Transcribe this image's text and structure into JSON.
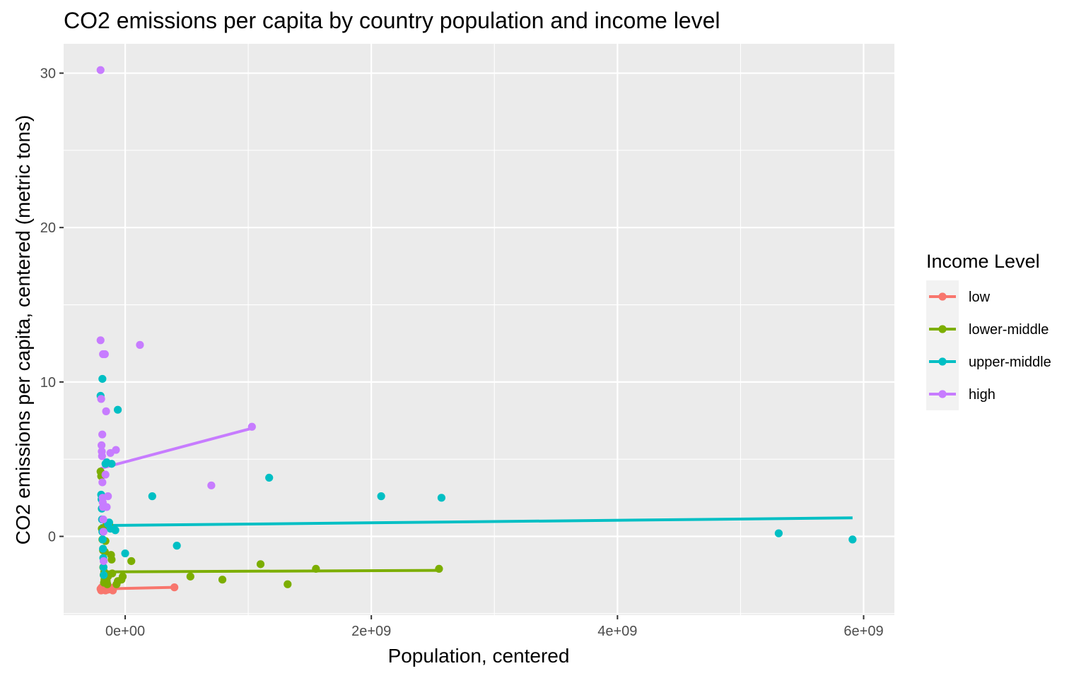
{
  "chart_data": {
    "type": "scatter",
    "title": "CO2 emissions per capita by country population and income level",
    "xlabel": "Population, centered",
    "ylabel": "CO2 emissions per capita, centered (metric tons)",
    "xlim": [
      -500000000,
      6250000000
    ],
    "ylim": [
      -5.1,
      31.9
    ],
    "x_ticks": [
      {
        "value": 0,
        "label": "0e+00"
      },
      {
        "value": 2000000000,
        "label": "2e+09"
      },
      {
        "value": 4000000000,
        "label": "4e+09"
      },
      {
        "value": 6000000000,
        "label": "6e+09"
      }
    ],
    "y_ticks": [
      {
        "value": 0,
        "label": "0"
      },
      {
        "value": 10,
        "label": "10"
      },
      {
        "value": 20,
        "label": "20"
      },
      {
        "value": 30,
        "label": "30"
      }
    ],
    "grid": true,
    "legend": {
      "title": "Income Level",
      "position": "right"
    },
    "series": [
      {
        "name": "low",
        "color": "#F8766D",
        "points": [
          [
            -200000000,
            -3.4
          ],
          [
            -195000000,
            -3.5
          ],
          [
            -190000000,
            -3.3
          ],
          [
            -185000000,
            -3.35
          ],
          [
            -180000000,
            -3.45
          ],
          [
            -175000000,
            -3.2
          ],
          [
            -170000000,
            -3.4
          ],
          [
            -160000000,
            -3.5
          ],
          [
            -150000000,
            -3.3
          ],
          [
            -140000000,
            -3.45
          ],
          [
            -130000000,
            -3.4
          ],
          [
            -110000000,
            -3.35
          ],
          [
            -100000000,
            -3.5
          ],
          [
            -90000000,
            -3.3
          ],
          [
            400000000,
            -3.3
          ]
        ],
        "fit": [
          [
            -200000000,
            -3.4
          ],
          [
            400000000,
            -3.3
          ]
        ]
      },
      {
        "name": "lower-middle",
        "color": "#7CAE00",
        "points": [
          [
            -200000000,
            4.2
          ],
          [
            -195000000,
            3.9
          ],
          [
            -190000000,
            0.5
          ],
          [
            -185000000,
            -0.2
          ],
          [
            -180000000,
            -0.9
          ],
          [
            -178000000,
            -2.0
          ],
          [
            -175000000,
            -2.5
          ],
          [
            -172000000,
            -3.0
          ],
          [
            -170000000,
            -2.3
          ],
          [
            -168000000,
            -2.8
          ],
          [
            -165000000,
            -1.0
          ],
          [
            -160000000,
            -0.3
          ],
          [
            -155000000,
            0.7
          ],
          [
            -150000000,
            -2.9
          ],
          [
            -145000000,
            -3.1
          ],
          [
            -140000000,
            -2.6
          ],
          [
            -130000000,
            0.8
          ],
          [
            -115000000,
            -1.2
          ],
          [
            -110000000,
            -1.5
          ],
          [
            -105000000,
            -2.4
          ],
          [
            -70000000,
            -3.1
          ],
          [
            -60000000,
            -2.9
          ],
          [
            -30000000,
            -2.8
          ],
          [
            -20000000,
            -2.6
          ],
          [
            50000000,
            -1.6
          ],
          [
            530000000,
            -2.6
          ],
          [
            790000000,
            -2.8
          ],
          [
            1100000000,
            -1.8
          ],
          [
            1320000000,
            -3.1
          ],
          [
            1550000000,
            -2.1
          ],
          [
            2550000000,
            -2.1
          ]
        ],
        "fit": [
          [
            -200000000,
            -2.3
          ],
          [
            2550000000,
            -2.2
          ]
        ]
      },
      {
        "name": "upper-middle",
        "color": "#00BFC4",
        "points": [
          [
            -200000000,
            9.1
          ],
          [
            -195000000,
            2.7
          ],
          [
            -192000000,
            2.4
          ],
          [
            -190000000,
            1.8
          ],
          [
            -188000000,
            1.1
          ],
          [
            -185000000,
            0.3
          ],
          [
            -182000000,
            -0.2
          ],
          [
            -180000000,
            -0.8
          ],
          [
            -178000000,
            -1.4
          ],
          [
            -176000000,
            -2.0
          ],
          [
            -174000000,
            -2.5
          ],
          [
            -185000000,
            10.2
          ],
          [
            -160000000,
            4.7
          ],
          [
            -150000000,
            4.8
          ],
          [
            -140000000,
            0.8
          ],
          [
            -130000000,
            0.9
          ],
          [
            -120000000,
            0.5
          ],
          [
            -110000000,
            4.7
          ],
          [
            -80000000,
            0.4
          ],
          [
            -60000000,
            8.2
          ],
          [
            0,
            -1.1
          ],
          [
            220000000,
            2.6
          ],
          [
            420000000,
            -0.6
          ],
          [
            1170000000,
            3.8
          ],
          [
            2080000000,
            2.6
          ],
          [
            2570000000,
            2.5
          ],
          [
            5310000000,
            0.2
          ],
          [
            5910000000,
            -0.2
          ]
        ],
        "fit": [
          [
            -200000000,
            0.7
          ],
          [
            5910000000,
            1.2
          ]
        ]
      },
      {
        "name": "high",
        "color": "#C77CFF",
        "points": [
          [
            -200000000,
            30.2
          ],
          [
            -200000000,
            12.7
          ],
          [
            -195000000,
            8.9
          ],
          [
            -192000000,
            5.9
          ],
          [
            -190000000,
            5.5
          ],
          [
            -188000000,
            5.2
          ],
          [
            -186000000,
            6.6
          ],
          [
            -185000000,
            3.5
          ],
          [
            -183000000,
            2.5
          ],
          [
            -182000000,
            2.2
          ],
          [
            -180000000,
            1.9
          ],
          [
            -178000000,
            1.1
          ],
          [
            -176000000,
            0.3
          ],
          [
            -175000000,
            -1.6
          ],
          [
            -180000000,
            11.8
          ],
          [
            -165000000,
            11.8
          ],
          [
            -160000000,
            4.0
          ],
          [
            -155000000,
            8.1
          ],
          [
            -150000000,
            1.9
          ],
          [
            -140000000,
            2.6
          ],
          [
            -120000000,
            5.4
          ],
          [
            -75000000,
            5.6
          ],
          [
            120000000,
            12.4
          ],
          [
            700000000,
            3.3
          ],
          [
            1030000000,
            7.1
          ]
        ],
        "fit": [
          [
            -200000000,
            4.4
          ],
          [
            1030000000,
            7.0
          ]
        ]
      }
    ]
  }
}
